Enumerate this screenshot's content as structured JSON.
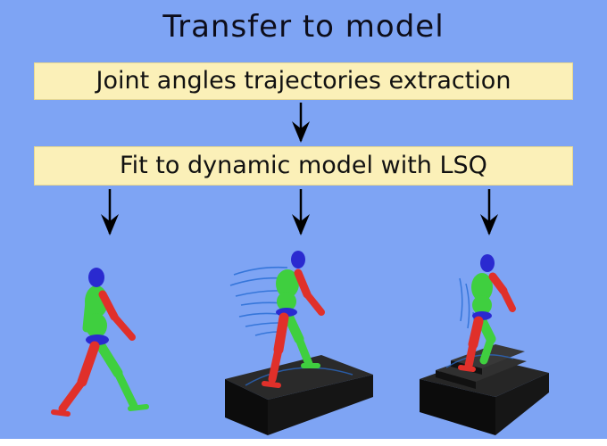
{
  "diagram": {
    "title": "Transfer to model",
    "steps": [
      "Joint angles trajectories extraction",
      "Fit to dynamic model with LSQ"
    ],
    "colors": {
      "background": "#7ea4f4",
      "box_fill": "#fbf0b8",
      "limb_red": "#e0302a",
      "limb_green": "#3fcf3f",
      "head_blue": "#2a2ad0",
      "platform": "#151515",
      "trajectory": "#2a6fd6"
    },
    "figures": [
      {
        "pose": "walking",
        "surface": "flat"
      },
      {
        "pose": "walking",
        "surface": "inclined treadmill"
      },
      {
        "pose": "climbing",
        "surface": "stairs"
      }
    ]
  }
}
